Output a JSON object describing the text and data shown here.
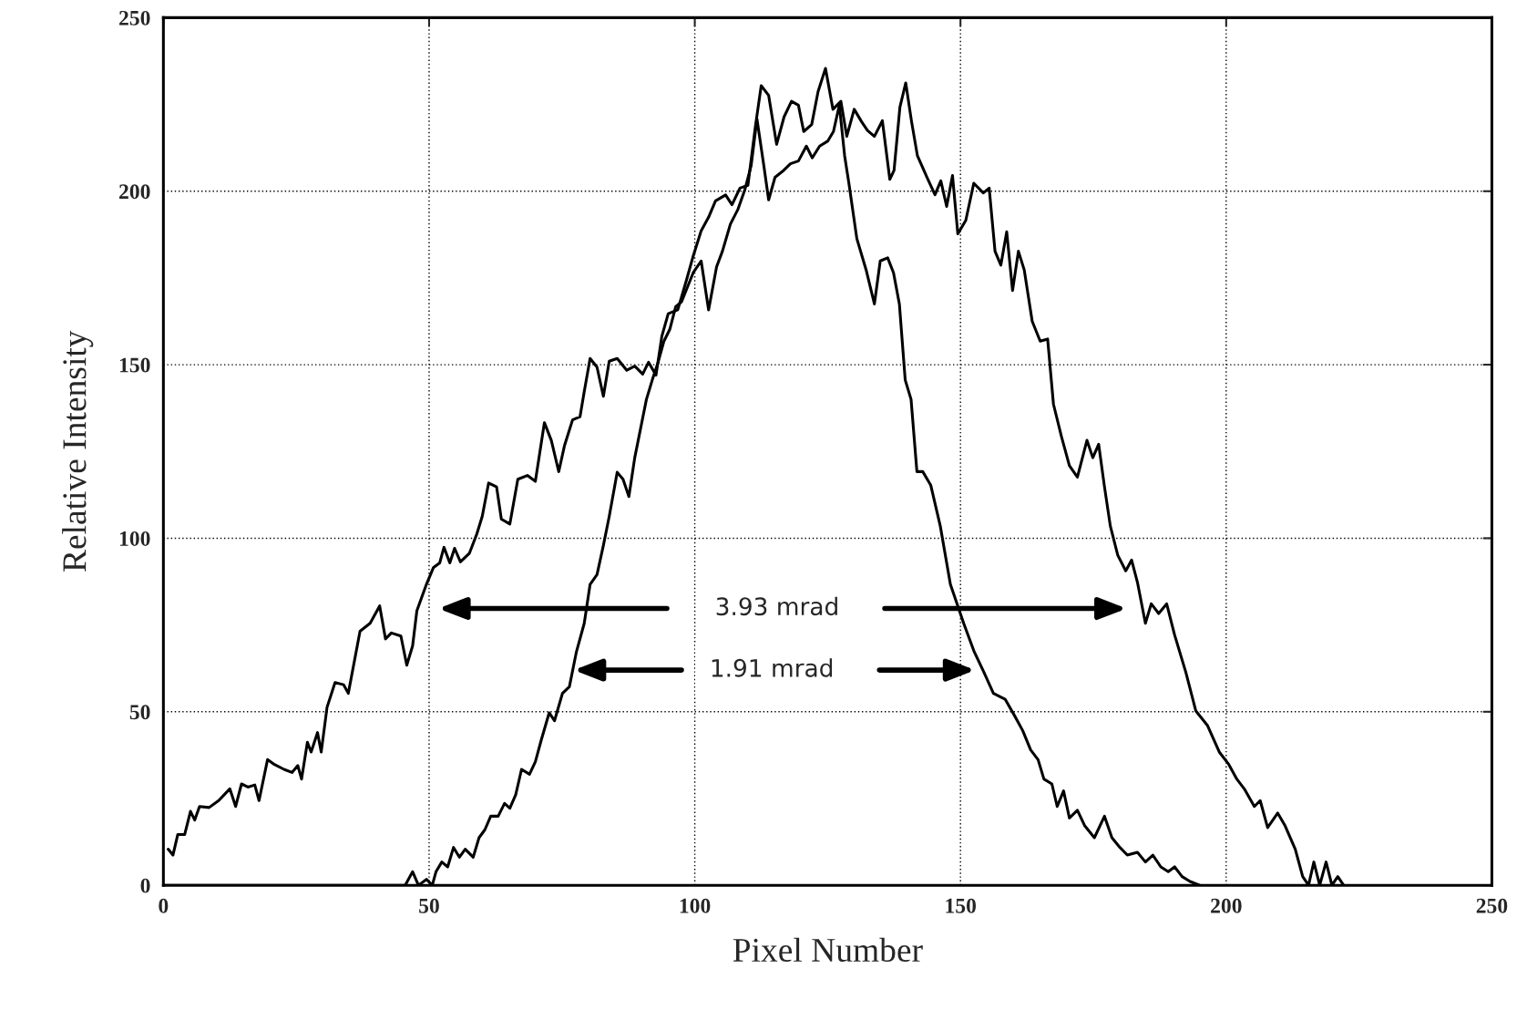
{
  "chart_data": {
    "type": "line",
    "xlabel": "Pixel Number",
    "ylabel": "Relative Intensity",
    "xlim": [
      0,
      250
    ],
    "ylim": [
      0,
      250
    ],
    "xticks": [
      0,
      50,
      100,
      150,
      200,
      250
    ],
    "yticks": [
      0,
      50,
      100,
      150,
      200,
      250
    ],
    "grid": true,
    "line_style": "solid",
    "marker": "none",
    "series": [
      {
        "color": "#000000",
        "x": [
          0.9,
          1.8,
          2.7,
          4,
          5.1,
          5.9,
          6.8,
          8.6,
          10.4,
          12.5,
          13.6,
          14.7,
          15.9,
          17.2,
          18,
          19.6,
          20.9,
          22.7,
          24.2,
          25.3,
          26,
          27.1,
          27.8,
          29,
          29.7,
          30.8,
          32.3,
          33.9,
          34.8,
          37,
          38.9,
          40.7,
          41.8,
          42.9,
          44.7,
          45.8,
          46.9,
          47.7,
          49.5,
          50.8,
          52,
          52.8,
          53.9,
          54.8,
          55.9,
          57.6,
          59,
          60,
          61.2,
          62.7,
          63.6,
          65.2,
          66.7,
          68.5,
          70,
          71.7,
          73,
          74.4,
          75.5,
          77,
          78.4,
          79.2,
          80.3,
          81.6,
          82.8,
          83.9,
          85.4,
          87.2,
          88.7,
          90.2,
          91.3,
          92.7,
          93.8,
          95,
          96.8,
          98.4,
          99.7,
          101.2,
          102.6,
          103.9,
          105.8,
          107,
          108.5,
          110,
          111.4,
          112.5,
          113.9,
          115.4,
          116.8,
          118.2,
          119.5,
          120.5,
          122,
          123.2,
          124.6,
          126,
          127.5,
          128.6,
          130,
          131.4,
          132.5,
          133.8,
          135.3,
          136.7,
          137.5,
          138.6,
          139.7,
          140.8,
          141.9,
          143.7,
          145.2,
          146.3,
          147.4,
          148.5,
          149.5,
          151,
          152.5,
          154.3,
          155.4,
          156.5,
          157.6,
          158.7,
          159.8,
          160.9,
          162,
          163.5,
          165,
          166.4,
          167.5,
          169,
          170.5,
          172,
          173.8,
          174.9,
          176,
          177.1,
          178.2,
          179.6,
          181.1,
          182.2,
          183.3,
          184.8,
          185.9,
          187.3,
          188.8,
          190.3,
          192.4,
          194.3,
          196.5,
          198.7,
          200.5,
          202,
          203.4,
          205.3,
          206.4,
          207.8,
          209.7,
          211.1,
          213,
          214.4,
          215.5,
          216.5,
          217.6,
          218.8,
          219.9,
          221,
          222.1
        ],
        "values": [
          10.4,
          8.7,
          14.6,
          14.6,
          21.3,
          18.8,
          22.7,
          22.4,
          24.4,
          27.8,
          22.7,
          29.2,
          28.3,
          28.9,
          24.4,
          36.2,
          34.8,
          33.4,
          32.5,
          34.5,
          30.6,
          41.2,
          38.4,
          44,
          38.4,
          51.3,
          58.4,
          57.8,
          55.3,
          73.2,
          75.5,
          80.5,
          71,
          72.7,
          71.8,
          63.4,
          69,
          79.1,
          86.7,
          91.5,
          92.9,
          97.4,
          92.9,
          97.1,
          93.2,
          95.7,
          101.3,
          106.3,
          115.9,
          114.8,
          105.5,
          104.1,
          117,
          118.1,
          116.4,
          133.3,
          128.2,
          119.2,
          126.8,
          134.1,
          135,
          142.3,
          151.8,
          149.3,
          140.9,
          151,
          151.8,
          148.4,
          149.6,
          147.3,
          150.7,
          147,
          158.2,
          164.7,
          165.8,
          174.2,
          181.3,
          188.6,
          192.5,
          197.2,
          198.9,
          196.1,
          200.9,
          201.7,
          218.6,
          230.4,
          227.6,
          213.5,
          221.4,
          225.9,
          224.8,
          217.2,
          219.2,
          228.7,
          235.4,
          223.6,
          225.9,
          215.8,
          223.6,
          220,
          217.5,
          215.8,
          220.3,
          203.4,
          206,
          224.2,
          231.2,
          220,
          210.2,
          204,
          199,
          203,
          195.6,
          204.5,
          187.7,
          191.6,
          202.3,
          199.5,
          200.9,
          182.7,
          178.7,
          188.3,
          171.4,
          182.7,
          177.3,
          162.5,
          156.8,
          157.4,
          138.6,
          129.3,
          120.9,
          117.6,
          128.2,
          123.2,
          127.1,
          114.8,
          103.5,
          95.1,
          90.6,
          93.7,
          87.3,
          75.5,
          81.1,
          78.3,
          81.1,
          72.1,
          61.4,
          50.2,
          46,
          38.4,
          34.8,
          30.6,
          27.8,
          22.7,
          24.4,
          16.6,
          20.8,
          17.1,
          10.4,
          2.5,
          0,
          6.7,
          0,
          6.7,
          0,
          2.5,
          0
        ]
      },
      {
        "color": "#000000",
        "x": [
          0,
          45.5,
          46.9,
          48,
          49.5,
          50.6,
          51.3,
          52.4,
          53.5,
          54.6,
          55.7,
          56.8,
          58.3,
          59.4,
          60.5,
          61.6,
          63,
          64.2,
          65.2,
          66.3,
          67.4,
          68.9,
          70,
          71.1,
          72.6,
          73.6,
          75.1,
          76.4,
          77.7,
          79.2,
          80.3,
          81.6,
          82.8,
          83.9,
          85.4,
          86.5,
          87.6,
          88.7,
          89.8,
          90.9,
          92,
          93.1,
          94.2,
          95.3,
          96.4,
          97.5,
          98.6,
          99.7,
          101.2,
          102.6,
          104.1,
          105.2,
          106.7,
          108.1,
          109.4,
          110.6,
          111.7,
          113,
          113.9,
          115.1,
          116.5,
          118,
          119.5,
          121,
          122.1,
          123.5,
          125,
          126.1,
          127.2,
          128.2,
          129,
          130.5,
          132.3,
          133.8,
          134.9,
          136.3,
          137.4,
          138.5,
          139.6,
          140.7,
          141.8,
          142.9,
          144.4,
          146.2,
          148.1,
          150.6,
          152.5,
          154.4,
          156.2,
          158.4,
          160.2,
          161.7,
          163.2,
          164.6,
          165.7,
          167.2,
          168.2,
          169.4,
          170.5,
          172,
          173.4,
          175.2,
          177.1,
          178.5,
          180,
          181.4,
          183.3,
          184.8,
          186.2,
          187.7,
          189.1,
          190.3,
          191.7,
          193.2,
          195
        ],
        "values": [
          0,
          0,
          3.9,
          0,
          1.7,
          0,
          3.9,
          6.7,
          5.3,
          10.9,
          8.1,
          10.4,
          8.1,
          13.7,
          16,
          19.9,
          19.9,
          23.6,
          22.2,
          26.1,
          33.4,
          32,
          35.6,
          41.8,
          49.7,
          47.4,
          55.3,
          57.2,
          67.1,
          75.5,
          86.7,
          89.5,
          97.9,
          106.3,
          119,
          117,
          112,
          123.2,
          131.6,
          140,
          145.6,
          150.7,
          156.8,
          160.2,
          166.7,
          168.1,
          172.3,
          176.5,
          179.9,
          165.8,
          178.2,
          182.7,
          190.5,
          194.7,
          200.3,
          207.3,
          220.8,
          207.3,
          197.5,
          204,
          205.7,
          207.9,
          208.7,
          213,
          209.6,
          213,
          214.4,
          217.2,
          224.8,
          210.2,
          202.3,
          186.3,
          177,
          167.5,
          179.9,
          180.8,
          176.5,
          167.5,
          145.6,
          140,
          119.2,
          119.2,
          115.3,
          103.5,
          86.7,
          75.5,
          67.6,
          61.4,
          55.3,
          53.6,
          48.8,
          44.6,
          39,
          36.2,
          30.6,
          29.2,
          22.7,
          27.2,
          19.4,
          21.6,
          17.1,
          13.7,
          19.9,
          13.7,
          10.9,
          8.7,
          9.5,
          6.7,
          8.7,
          5.3,
          3.9,
          5.3,
          2.5,
          1.1,
          0
        ]
      }
    ],
    "annotations": [
      "3.93 mrad",
      "1.91 mrad"
    ]
  }
}
